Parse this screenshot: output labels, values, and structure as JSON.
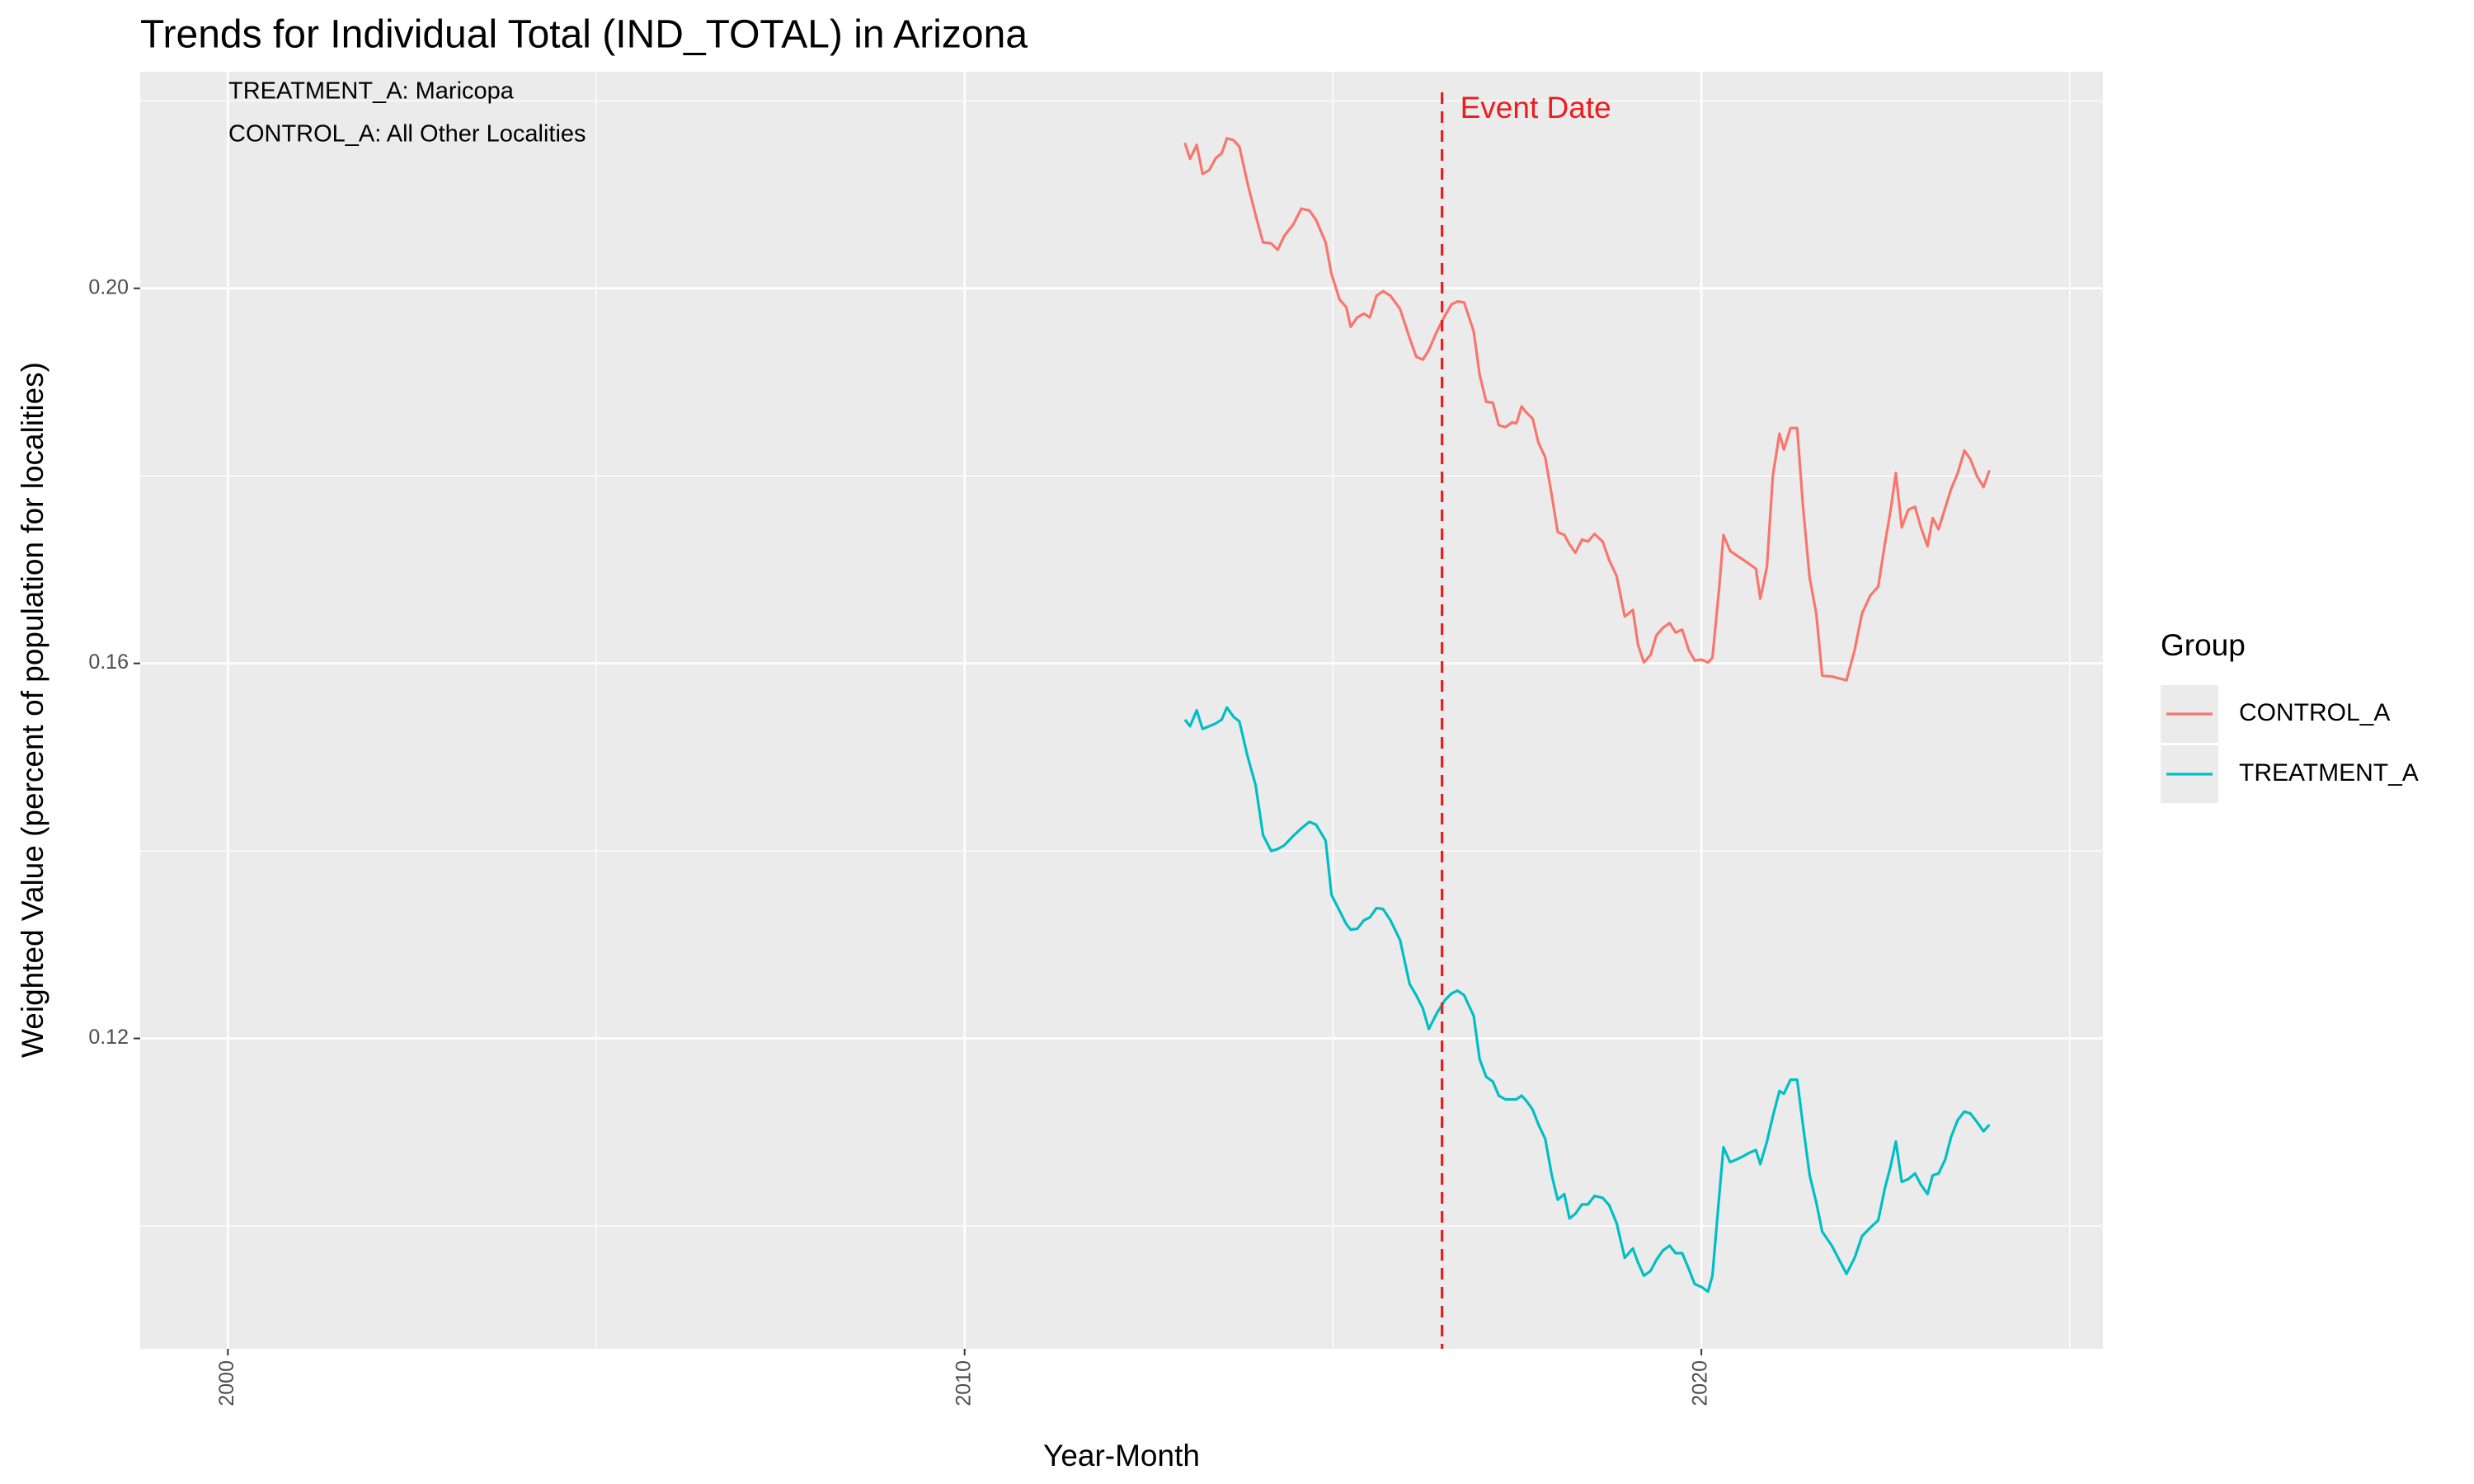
{
  "chart_data": {
    "type": "line",
    "title": "Trends for Individual Total (IND_TOTAL) in Arizona",
    "x_label": "Year-Month",
    "y_label": "Weighted Value (percent of population for localities)",
    "annotations": [
      "TREATMENT_A: Maricopa",
      "CONTROL_A: All Other Localities"
    ],
    "event": {
      "x": 2016.48,
      "label": "Event Date",
      "color": "#ee1c1c"
    },
    "legend_title": "Group",
    "legend_position": "right",
    "grid": true,
    "xlim": [
      1998.81,
      2025.45
    ],
    "xticks": [
      2000,
      2010,
      2020
    ],
    "ylim": [
      0.0869,
      0.2231
    ],
    "yticks": [
      {
        "value": 0.12,
        "label": "0.12"
      },
      {
        "value": 0.16,
        "label": "0.16"
      },
      {
        "value": 0.2,
        "label": "0.20"
      }
    ],
    "x": [
      2012.99,
      2013.06,
      2013.15,
      2013.23,
      2013.32,
      2013.41,
      2013.49,
      2013.56,
      2013.65,
      2013.73,
      2013.84,
      2013.95,
      2014.05,
      2014.16,
      2014.25,
      2014.34,
      2014.46,
      2014.57,
      2014.68,
      2014.77,
      2014.9,
      2014.98,
      2015.09,
      2015.18,
      2015.24,
      2015.33,
      2015.42,
      2015.5,
      2015.59,
      2015.68,
      2015.78,
      2015.91,
      2016.04,
      2016.13,
      2016.22,
      2016.3,
      2016.41,
      2016.52,
      2016.61,
      2016.69,
      2016.78,
      2016.91,
      2016.99,
      2017.08,
      2017.17,
      2017.25,
      2017.34,
      2017.43,
      2017.49,
      2017.56,
      2017.62,
      2017.71,
      2017.79,
      2017.88,
      2017.97,
      2018.05,
      2018.14,
      2018.21,
      2018.29,
      2018.38,
      2018.46,
      2018.55,
      2018.66,
      2018.75,
      2018.85,
      2018.96,
      2019.07,
      2019.14,
      2019.22,
      2019.31,
      2019.39,
      2019.48,
      2019.57,
      2019.65,
      2019.74,
      2019.83,
      2019.91,
      2020.0,
      2020.09,
      2020.15,
      2020.24,
      2020.3,
      2020.39,
      2020.48,
      2020.56,
      2020.65,
      2020.74,
      2020.8,
      2020.89,
      2020.97,
      2021.06,
      2021.12,
      2021.21,
      2021.3,
      2021.38,
      2021.47,
      2021.56,
      2021.64,
      2021.77,
      2021.97,
      2022.08,
      2022.18,
      2022.29,
      2022.4,
      2022.49,
      2022.57,
      2022.64,
      2022.72,
      2022.81,
      2022.9,
      2022.98,
      2023.07,
      2023.14,
      2023.22,
      2023.31,
      2023.39,
      2023.48,
      2023.57,
      2023.65,
      2023.74,
      2023.83,
      2023.91
    ],
    "series": [
      {
        "name": "CONTROL_A",
        "color": "#F8766D",
        "values": [
          0.2155,
          0.2138,
          0.2153,
          0.2122,
          0.2126,
          0.2139,
          0.2144,
          0.216,
          0.2158,
          0.2151,
          0.2112,
          0.2078,
          0.2049,
          0.2048,
          0.2041,
          0.2056,
          0.2068,
          0.2085,
          0.2083,
          0.2073,
          0.2049,
          0.2015,
          0.1988,
          0.198,
          0.1959,
          0.1969,
          0.1973,
          0.1969,
          0.1992,
          0.1997,
          0.1992,
          0.1978,
          0.1947,
          0.1927,
          0.1924,
          0.1934,
          0.1954,
          0.1971,
          0.1983,
          0.1986,
          0.1985,
          0.1954,
          0.1908,
          0.1879,
          0.1878,
          0.1854,
          0.1852,
          0.1857,
          0.1856,
          0.1874,
          0.1868,
          0.1861,
          0.1835,
          0.182,
          0.1779,
          0.174,
          0.1737,
          0.1727,
          0.1718,
          0.1732,
          0.173,
          0.1738,
          0.173,
          0.171,
          0.1693,
          0.165,
          0.1657,
          0.162,
          0.1601,
          0.1609,
          0.163,
          0.1638,
          0.1643,
          0.1633,
          0.1636,
          0.1614,
          0.1603,
          0.1604,
          0.1601,
          0.1606,
          0.1679,
          0.1737,
          0.172,
          0.1715,
          0.1711,
          0.1706,
          0.1701,
          0.1669,
          0.1703,
          0.18,
          0.1845,
          0.1828,
          0.1851,
          0.1851,
          0.1767,
          0.1691,
          0.1653,
          0.1587,
          0.1586,
          0.1582,
          0.1614,
          0.1653,
          0.1672,
          0.1682,
          0.1727,
          0.1764,
          0.1803,
          0.1745,
          0.1764,
          0.1767,
          0.1745,
          0.1725,
          0.1755,
          0.1743,
          0.1766,
          0.1786,
          0.1803,
          0.1827,
          0.1818,
          0.18,
          0.1788,
          0.1806
        ]
      },
      {
        "name": "TREATMENT_A",
        "color": "#00BFC4",
        "values": [
          0.154,
          0.1533,
          0.155,
          0.153,
          0.1533,
          0.1536,
          0.154,
          0.1553,
          0.1543,
          0.1538,
          0.1501,
          0.147,
          0.1417,
          0.14,
          0.1402,
          0.1406,
          0.1416,
          0.1424,
          0.1431,
          0.1428,
          0.1411,
          0.1353,
          0.1336,
          0.1322,
          0.1316,
          0.1317,
          0.1326,
          0.1329,
          0.1339,
          0.1338,
          0.1326,
          0.1305,
          0.1258,
          0.1246,
          0.1232,
          0.121,
          0.1227,
          0.1241,
          0.1248,
          0.1251,
          0.1246,
          0.1224,
          0.1178,
          0.1159,
          0.1154,
          0.1139,
          0.1135,
          0.1135,
          0.1135,
          0.1139,
          0.1134,
          0.1124,
          0.1108,
          0.1093,
          0.1054,
          0.1028,
          0.1034,
          0.1008,
          0.1013,
          0.1023,
          0.1023,
          0.1032,
          0.103,
          0.1022,
          0.1003,
          0.0966,
          0.0976,
          0.0961,
          0.0947,
          0.0952,
          0.0964,
          0.0974,
          0.0979,
          0.0971,
          0.0971,
          0.0954,
          0.0938,
          0.0935,
          0.093,
          0.0947,
          0.103,
          0.1084,
          0.1068,
          0.1071,
          0.1074,
          0.1078,
          0.1081,
          0.1066,
          0.109,
          0.1117,
          0.1144,
          0.1141,
          0.1156,
          0.1156,
          0.1107,
          0.1054,
          0.1025,
          0.0994,
          0.0979,
          0.0949,
          0.0966,
          0.0989,
          0.0998,
          0.1006,
          0.104,
          0.1064,
          0.109,
          0.1047,
          0.105,
          0.1056,
          0.1044,
          0.1034,
          0.1054,
          0.1056,
          0.1071,
          0.1095,
          0.1113,
          0.1122,
          0.112,
          0.1111,
          0.1101,
          0.1108
        ]
      }
    ]
  }
}
